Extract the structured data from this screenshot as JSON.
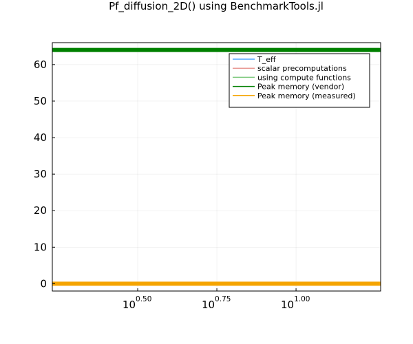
{
  "chart_data": {
    "type": "line",
    "title": "Pf_diffusion_2D() using BenchmarkTools.jl",
    "xlabel": "",
    "ylabel": "",
    "xscale": "log10",
    "xlim": [
      1.7,
      18.5
    ],
    "ylim": [
      -2,
      66
    ],
    "grid": true,
    "legend_position": "top-right",
    "x_ticks": [
      {
        "base": "10",
        "exp": "0.50",
        "value": 3.1623
      },
      {
        "base": "10",
        "exp": "0.75",
        "value": 5.6234
      },
      {
        "base": "10",
        "exp": "1.00",
        "value": 10.0
      }
    ],
    "y_ticks": [
      0,
      10,
      20,
      30,
      40,
      50,
      60
    ],
    "series": [
      {
        "name": "T_eff",
        "color": "#4da6ff",
        "x": [],
        "y": []
      },
      {
        "name": "scalar precomputations",
        "color": "#e89a94",
        "x": [],
        "y": []
      },
      {
        "name": "using compute functions",
        "color": "#7dc97d",
        "x": [],
        "y": []
      },
      {
        "name": "Peak memory (vendor)",
        "color": "#008000",
        "x": [
          1.7,
          18.5
        ],
        "y": [
          64,
          64
        ]
      },
      {
        "name": "Peak memory (measured)",
        "color": "#f5a400",
        "x": [
          1.7,
          18.5
        ],
        "y": [
          0,
          0
        ]
      }
    ]
  }
}
